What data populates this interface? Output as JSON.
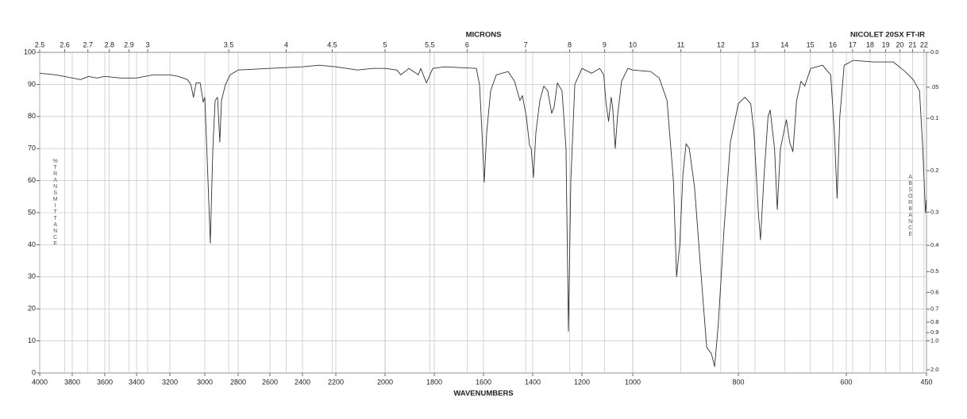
{
  "chart_data": {
    "type": "line",
    "instrument": "NICOLET 20SX FT-IR",
    "x_label": "WAVENUMBERS",
    "x2_label": "MICRONS",
    "y_label": "%TRANSMITTANCE",
    "y2_label": "ABSORBANCE",
    "color": "#333333",
    "grid": true,
    "xlim": [
      4000,
      450
    ],
    "xticks": [
      4000,
      3800,
      3600,
      3400,
      3200,
      3000,
      2800,
      2600,
      2400,
      2200,
      2000,
      1800,
      1600,
      1400,
      1200,
      1000,
      800,
      600,
      450
    ],
    "x2ticks": [
      2.5,
      2.6,
      2.7,
      2.8,
      2.9,
      3,
      3.5,
      4,
      4.5,
      5,
      5.5,
      6,
      7,
      8,
      9,
      10,
      11,
      12,
      13,
      14,
      15,
      16,
      17,
      18,
      19,
      20,
      21,
      22
    ],
    "ylim": [
      0,
      100
    ],
    "yticks": [
      0,
      10,
      20,
      30,
      40,
      50,
      60,
      70,
      80,
      90,
      100
    ],
    "y2ticks": [
      {
        "value": 0,
        "label": "0.0"
      },
      {
        "value": 0.05,
        "label": ".05"
      },
      0.1,
      0.2,
      0.3,
      0.4,
      0.5,
      0.6,
      0.7,
      0.8,
      0.9,
      {
        "value": 1,
        "label": "1.0"
      },
      {
        "value": 2,
        "label": "2.0"
      }
    ],
    "x": [
      4000,
      3900,
      3850,
      3800,
      3750,
      3700,
      3650,
      3600,
      3500,
      3400,
      3300,
      3200,
      3150,
      3100,
      3080,
      3065,
      3050,
      3027,
      3009,
      3000,
      2981,
      2967,
      2952,
      2938,
      2924,
      2910,
      2900,
      2876,
      2848,
      2800,
      2600,
      2400,
      2300,
      2200,
      2113,
      2048,
      2000,
      1952,
      1936,
      1903,
      1865,
      1855,
      1832,
      1806,
      1758,
      1629,
      1616,
      1606,
      1597,
      1587,
      1571,
      1548,
      1500,
      1474,
      1452,
      1442,
      1426,
      1413,
      1406,
      1397,
      1387,
      1371,
      1355,
      1339,
      1323,
      1313,
      1300,
      1281,
      1265,
      1255,
      1245,
      1229,
      1200,
      1162,
      1130,
      1114,
      1105,
      1095,
      1085,
      1079,
      1069,
      1060,
      1044,
      1019,
      1000,
      966,
      950,
      935,
      923,
      917,
      911,
      905,
      899,
      893,
      883,
      868,
      860,
      851,
      845,
      838,
      827,
      815,
      800,
      788,
      777,
      771,
      763,
      759,
      753,
      745,
      741,
      733,
      728,
      722,
      711,
      705,
      699,
      692,
      684,
      677,
      666,
      644,
      629,
      622,
      617,
      612,
      604,
      587,
      550,
      512,
      490,
      475,
      463,
      457,
      452,
      450
    ],
    "values": [
      93.5,
      93,
      92.5,
      92,
      91.5,
      92.5,
      92,
      92.5,
      92,
      92,
      93,
      93,
      92.5,
      91.5,
      90,
      86,
      90.5,
      90.5,
      84.5,
      86,
      60,
      40.5,
      70,
      85,
      86,
      72,
      85,
      90,
      93,
      94.5,
      95,
      95.5,
      96,
      95.5,
      94.5,
      95,
      95,
      94.5,
      93,
      95,
      93,
      95,
      90.5,
      95,
      95.5,
      95,
      90,
      75,
      59.5,
      75,
      88,
      93,
      94,
      91,
      85,
      86.5,
      80,
      71,
      70,
      61,
      75,
      85,
      89.5,
      88,
      81,
      83,
      90.5,
      88,
      70,
      13,
      60,
      90,
      95,
      93.5,
      95,
      93,
      84,
      78.5,
      86,
      83,
      70,
      80,
      91,
      95,
      94.5,
      94,
      92,
      85,
      60,
      30,
      40,
      62,
      71.5,
      70,
      58,
      25,
      8,
      6,
      2,
      15,
      45,
      72,
      84,
      86,
      84,
      75,
      50,
      41.5,
      60,
      80,
      82,
      70,
      51,
      70,
      79,
      72,
      69,
      85,
      91,
      89.5,
      95,
      96,
      93,
      75,
      54.5,
      80,
      96,
      97.5,
      97,
      97,
      94,
      91.5,
      88,
      70,
      50,
      54
    ]
  }
}
